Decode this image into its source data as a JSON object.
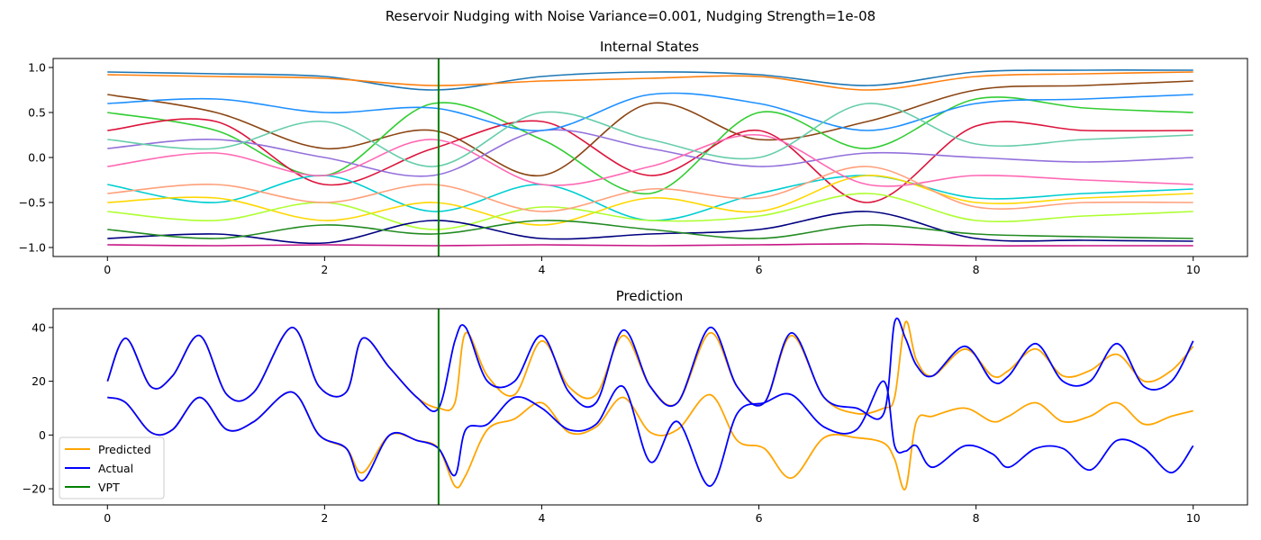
{
  "suptitle": "Reservoir Nudging with Noise Variance=0.001, Nudging Strength=1e-08",
  "colors": {
    "predicted": "#FFA500",
    "actual": "#0000FF",
    "vpt": "#008000"
  },
  "chart_data": [
    {
      "type": "line",
      "title": "Internal States",
      "xlabel": "",
      "ylabel": "",
      "xlim": [
        -0.5,
        10.5
      ],
      "ylim": [
        -1.1,
        1.1
      ],
      "xticks": [
        0,
        2,
        4,
        6,
        8,
        10
      ],
      "yticks": [
        -1.0,
        -0.5,
        0.0,
        0.5,
        1.0
      ],
      "vpt_x": 3.05,
      "grid": false,
      "x": [
        0,
        1,
        2,
        3,
        4,
        5,
        6,
        7,
        8,
        9,
        10
      ],
      "series": [
        {
          "color": "#1f77b4",
          "values": [
            0.95,
            0.93,
            0.9,
            0.75,
            0.9,
            0.95,
            0.92,
            0.8,
            0.95,
            0.97,
            0.97
          ]
        },
        {
          "color": "#ff7f0e",
          "values": [
            0.92,
            0.9,
            0.88,
            0.8,
            0.85,
            0.88,
            0.9,
            0.75,
            0.9,
            0.93,
            0.95
          ]
        },
        {
          "color": "#8B4513",
          "values": [
            0.7,
            0.5,
            0.1,
            0.3,
            -0.2,
            0.6,
            0.2,
            0.4,
            0.75,
            0.8,
            0.85
          ]
        },
        {
          "color": "#32CD32",
          "values": [
            0.5,
            0.3,
            -0.2,
            0.6,
            0.2,
            -0.4,
            0.5,
            0.1,
            0.65,
            0.55,
            0.5
          ]
        },
        {
          "color": "#DC143C",
          "values": [
            0.3,
            0.4,
            -0.3,
            0.1,
            0.4,
            -0.2,
            0.3,
            -0.5,
            0.35,
            0.3,
            0.3
          ]
        },
        {
          "color": "#9370DB",
          "values": [
            0.1,
            0.2,
            0.0,
            -0.2,
            0.3,
            0.1,
            -0.1,
            0.05,
            0.0,
            -0.05,
            0.0
          ]
        },
        {
          "color": "#00CED1",
          "values": [
            -0.3,
            -0.5,
            -0.2,
            -0.6,
            -0.3,
            -0.7,
            -0.4,
            -0.2,
            -0.45,
            -0.4,
            -0.35
          ]
        },
        {
          "color": "#FFD700",
          "values": [
            -0.5,
            -0.45,
            -0.7,
            -0.5,
            -0.75,
            -0.45,
            -0.6,
            -0.2,
            -0.5,
            -0.45,
            -0.4
          ]
        },
        {
          "color": "#ADFF2F",
          "values": [
            -0.6,
            -0.7,
            -0.5,
            -0.8,
            -0.55,
            -0.7,
            -0.65,
            -0.4,
            -0.7,
            -0.65,
            -0.6
          ]
        },
        {
          "color": "#FF69B4",
          "values": [
            -0.1,
            0.05,
            -0.2,
            0.2,
            -0.3,
            -0.1,
            0.25,
            -0.3,
            -0.2,
            -0.25,
            -0.3
          ]
        },
        {
          "color": "#000080",
          "values": [
            -0.9,
            -0.85,
            -0.95,
            -0.7,
            -0.9,
            -0.85,
            -0.8,
            -0.6,
            -0.9,
            -0.92,
            -0.93
          ]
        },
        {
          "color": "#C71585",
          "values": [
            -0.97,
            -0.98,
            -0.97,
            -0.98,
            -0.97,
            -0.98,
            -0.97,
            -0.96,
            -0.98,
            -0.98,
            -0.98
          ]
        },
        {
          "color": "#228B22",
          "values": [
            -0.8,
            -0.9,
            -0.75,
            -0.85,
            -0.7,
            -0.8,
            -0.9,
            -0.75,
            -0.85,
            -0.88,
            -0.9
          ]
        },
        {
          "color": "#1E90FF",
          "values": [
            0.6,
            0.65,
            0.5,
            0.55,
            0.3,
            0.7,
            0.6,
            0.3,
            0.6,
            0.65,
            0.7
          ]
        },
        {
          "color": "#FFA07A",
          "values": [
            -0.4,
            -0.3,
            -0.5,
            -0.3,
            -0.6,
            -0.35,
            -0.45,
            -0.1,
            -0.55,
            -0.5,
            -0.5
          ]
        },
        {
          "color": "#66CDAA",
          "values": [
            0.2,
            0.1,
            0.4,
            -0.1,
            0.5,
            0.2,
            0.0,
            0.6,
            0.15,
            0.2,
            0.25
          ]
        }
      ]
    },
    {
      "type": "line",
      "title": "Prediction",
      "xlabel": "",
      "ylabel": "",
      "xlim": [
        -0.5,
        10.5
      ],
      "ylim": [
        -26,
        47
      ],
      "xticks": [
        0,
        2,
        4,
        6,
        8,
        10
      ],
      "yticks": [
        -20,
        0,
        20,
        40
      ],
      "vpt_x": 3.05,
      "grid": false,
      "legend": {
        "placement": "lower-left",
        "entries": [
          "Predicted",
          "Actual",
          "VPT"
        ]
      },
      "x": [
        0,
        0.17,
        0.4,
        0.6,
        0.85,
        1.1,
        1.35,
        1.7,
        1.95,
        2.2,
        2.35,
        2.6,
        2.85,
        3.05,
        3.2,
        3.3,
        3.5,
        3.75,
        4.0,
        4.25,
        4.5,
        4.75,
        5.0,
        5.25,
        5.55,
        5.8,
        6.05,
        6.3,
        6.6,
        6.9,
        7.15,
        7.25,
        7.35,
        7.45,
        7.6,
        7.9,
        8.15,
        8.3,
        8.55,
        8.8,
        9.05,
        9.3,
        9.55,
        9.8,
        10.0
      ],
      "series": [
        {
          "name": "Predicted",
          "color": "#FFA500",
          "values": [
            20,
            36,
            18,
            22,
            37,
            15,
            16,
            40,
            18,
            16,
            36,
            25,
            14,
            10,
            12,
            38,
            22,
            15,
            35,
            18,
            15,
            37,
            18,
            12,
            38,
            18,
            12,
            37,
            14,
            8,
            10,
            14,
            42,
            28,
            22,
            32,
            22,
            24,
            32,
            22,
            24,
            30,
            20,
            24,
            33
          ]
        },
        {
          "name": "Predicted",
          "color": "#FFA500",
          "values": [
            14,
            12,
            1,
            2,
            14,
            2,
            5,
            16,
            0,
            -5,
            -14,
            0,
            -2,
            -5,
            -19,
            -15,
            2,
            6,
            12,
            1,
            3,
            14,
            1,
            2,
            15,
            -2,
            -5,
            -16,
            -1,
            -1,
            -3,
            -9,
            -20,
            5,
            7,
            10,
            5,
            7,
            12,
            5,
            7,
            12,
            4,
            7,
            9
          ]
        },
        {
          "name": "Actual",
          "color": "#0000FF",
          "values": [
            20,
            36,
            18,
            22,
            37,
            15,
            16,
            40,
            18,
            16,
            36,
            25,
            14,
            10,
            35,
            40,
            20,
            20,
            37,
            16,
            12,
            39,
            18,
            12,
            40,
            18,
            12,
            38,
            14,
            10,
            8,
            42,
            36,
            26,
            22,
            33,
            20,
            22,
            34,
            20,
            20,
            34,
            18,
            20,
            35
          ]
        },
        {
          "name": "Actual",
          "color": "#0000FF",
          "values": [
            14,
            12,
            1,
            2,
            14,
            2,
            5,
            16,
            0,
            -5,
            -17,
            0,
            -2,
            -5,
            -15,
            2,
            4,
            14,
            10,
            2,
            4,
            18,
            -10,
            5,
            -19,
            8,
            12,
            15,
            3,
            2,
            20,
            -4,
            -6,
            -4,
            -12,
            -4,
            -7,
            -12,
            -5,
            -5,
            -13,
            -2,
            -5,
            -14,
            -4
          ]
        }
      ]
    }
  ],
  "panel1": {
    "title": "Internal States",
    "xtick_labels": [
      "0",
      "2",
      "4",
      "6",
      "8",
      "10"
    ],
    "ytick_labels": [
      "−1.0",
      "−0.5",
      "0.0",
      "0.5",
      "1.0"
    ]
  },
  "panel2": {
    "title": "Prediction",
    "xtick_labels": [
      "0",
      "2",
      "4",
      "6",
      "8",
      "10"
    ],
    "ytick_labels": [
      "−20",
      "0",
      "20",
      "40"
    ]
  },
  "legend": {
    "predicted_label": "Predicted",
    "actual_label": "Actual",
    "vpt_label": "VPT"
  }
}
